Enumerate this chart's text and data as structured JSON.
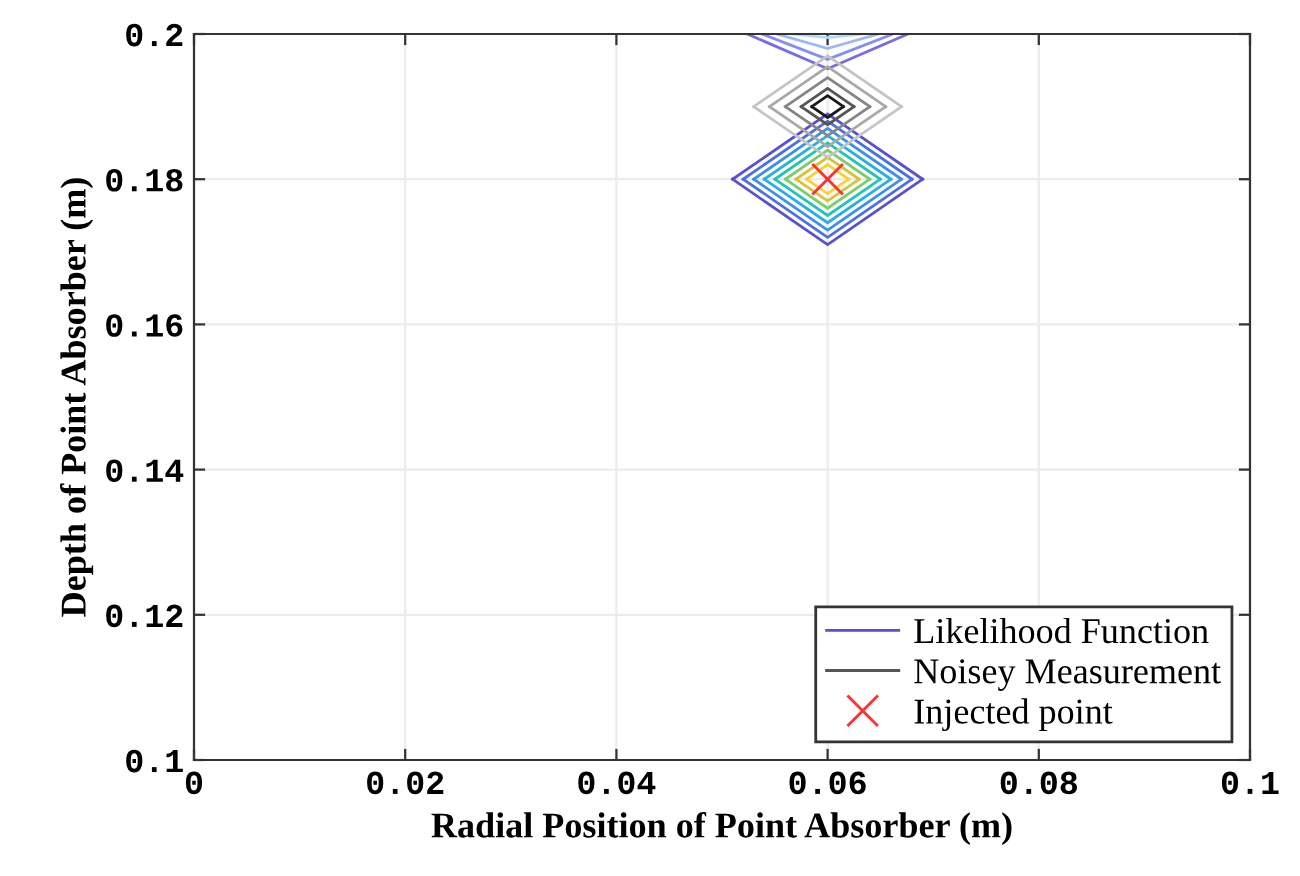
{
  "chart_data": {
    "type": "line",
    "xlabel": "Radial Position of Point Absorber (m)",
    "ylabel": "Depth of Point Absorber (m)",
    "xlim": [
      0,
      0.1
    ],
    "ylim": [
      0.1,
      0.2
    ],
    "xticks": [
      0,
      0.02,
      0.04,
      0.06,
      0.08,
      0.1
    ],
    "yticks": [
      0.1,
      0.12,
      0.14,
      0.16,
      0.18,
      0.2
    ],
    "grid": true,
    "legend": "bottom right",
    "line_style": "solid",
    "marker": "none",
    "series": [
      {
        "name": "Likelihood Function",
        "color": "#5a4fcf",
        "x": [
          0.051,
          0.06,
          0.069
        ],
        "values": [
          0.18,
          0.189,
          0.18
        ]
      },
      {
        "color": "#5b50d0",
        "x": [
          0.051,
          0.06,
          0.069
        ],
        "values": [
          0.18,
          0.171,
          0.18
        ]
      },
      {
        "color": "#4a6fe3",
        "x": [
          0.052,
          0.06,
          0.068
        ],
        "values": [
          0.18,
          0.188,
          0.18
        ]
      },
      {
        "color": "#4b70e4",
        "x": [
          0.052,
          0.06,
          0.068
        ],
        "values": [
          0.18,
          0.172,
          0.18
        ]
      },
      {
        "color": "#3d8fe8",
        "x": [
          0.053,
          0.06,
          0.067
        ],
        "values": [
          0.18,
          0.187,
          0.18
        ]
      },
      {
        "color": "#3e90e9",
        "x": [
          0.053,
          0.06,
          0.067
        ],
        "values": [
          0.18,
          0.173,
          0.18
        ]
      },
      {
        "color": "#2aaee0",
        "x": [
          0.054,
          0.06,
          0.066
        ],
        "values": [
          0.18,
          0.186,
          0.18
        ]
      },
      {
        "color": "#2bafe1",
        "x": [
          0.054,
          0.06,
          0.066
        ],
        "values": [
          0.18,
          0.174,
          0.18
        ]
      },
      {
        "color": "#25c2b5",
        "x": [
          0.055,
          0.06,
          0.065
        ],
        "values": [
          0.18,
          0.185,
          0.18
        ]
      },
      {
        "color": "#26c3b6",
        "x": [
          0.055,
          0.06,
          0.065
        ],
        "values": [
          0.18,
          0.175,
          0.18
        ]
      },
      {
        "color": "#7ccb6c",
        "x": [
          0.056,
          0.06,
          0.064
        ],
        "values": [
          0.18,
          0.184,
          0.18
        ]
      },
      {
        "color": "#7dcc6d",
        "x": [
          0.056,
          0.06,
          0.064
        ],
        "values": [
          0.18,
          0.176,
          0.18
        ]
      },
      {
        "color": "#d6c13a",
        "x": [
          0.057,
          0.06,
          0.063
        ],
        "values": [
          0.18,
          0.183,
          0.18
        ]
      },
      {
        "color": "#d7c23b",
        "x": [
          0.057,
          0.06,
          0.063
        ],
        "values": [
          0.18,
          0.177,
          0.18
        ]
      },
      {
        "color": "#f7d038",
        "x": [
          0.058,
          0.06,
          0.062
        ],
        "values": [
          0.18,
          0.182,
          0.18
        ]
      },
      {
        "color": "#f8d139",
        "x": [
          0.058,
          0.06,
          0.062
        ],
        "values": [
          0.18,
          0.178,
          0.18
        ]
      },
      {
        "color": "#7a6ce0",
        "x": [
          0.0524,
          0.06,
          0.0676
        ],
        "values": [
          0.2,
          0.1952,
          0.2
        ]
      },
      {
        "color": "#8090f0",
        "x": [
          0.0538,
          0.06,
          0.0662
        ],
        "values": [
          0.2,
          0.1965,
          0.2
        ]
      },
      {
        "color": "#9ab8f4",
        "x": [
          0.0552,
          0.06,
          0.0648
        ],
        "values": [
          0.2,
          0.198,
          0.2
        ]
      },
      {
        "color": "#b0d8f8",
        "x": [
          0.0567,
          0.06,
          0.0633
        ],
        "values": [
          0.2,
          0.1995,
          0.2
        ]
      },
      {
        "color": "#c4c4c4",
        "x": [
          0.053,
          0.06,
          0.067
        ],
        "values": [
          0.19,
          0.197,
          0.19
        ]
      },
      {
        "color": "#c5c5c5",
        "x": [
          0.053,
          0.06,
          0.067
        ],
        "values": [
          0.19,
          0.183,
          0.19
        ]
      },
      {
        "color": "#a8a8a8",
        "x": [
          0.0545,
          0.06,
          0.0655
        ],
        "values": [
          0.19,
          0.1955,
          0.19
        ]
      },
      {
        "color": "#a9a9a9",
        "x": [
          0.0545,
          0.06,
          0.0655
        ],
        "values": [
          0.19,
          0.1845,
          0.19
        ]
      },
      {
        "color": "#858585",
        "x": [
          0.056,
          0.06,
          0.064
        ],
        "values": [
          0.19,
          0.194,
          0.19
        ]
      },
      {
        "color": "#868686",
        "x": [
          0.056,
          0.06,
          0.064
        ],
        "values": [
          0.19,
          0.186,
          0.19
        ]
      },
      {
        "name": "Noisey Measurement",
        "color": "#555555",
        "x": [
          0.0575,
          0.06,
          0.0625
        ],
        "values": [
          0.19,
          0.1925,
          0.19
        ]
      },
      {
        "color": "#565656",
        "x": [
          0.0575,
          0.06,
          0.0625
        ],
        "values": [
          0.19,
          0.1875,
          0.19
        ]
      },
      {
        "color": "#1a1a1a",
        "x": [
          0.0585,
          0.06,
          0.0615
        ],
        "values": [
          0.19,
          0.1915,
          0.19
        ]
      },
      {
        "color": "#1b1b1b",
        "x": [
          0.0585,
          0.06,
          0.0615
        ],
        "values": [
          0.19,
          0.1885,
          0.19
        ]
      },
      {
        "name": "Injected point",
        "type": "scatter",
        "marker": "cross",
        "color": "#ff3030",
        "x": [
          0.06
        ],
        "values": [
          0.18
        ]
      }
    ]
  }
}
